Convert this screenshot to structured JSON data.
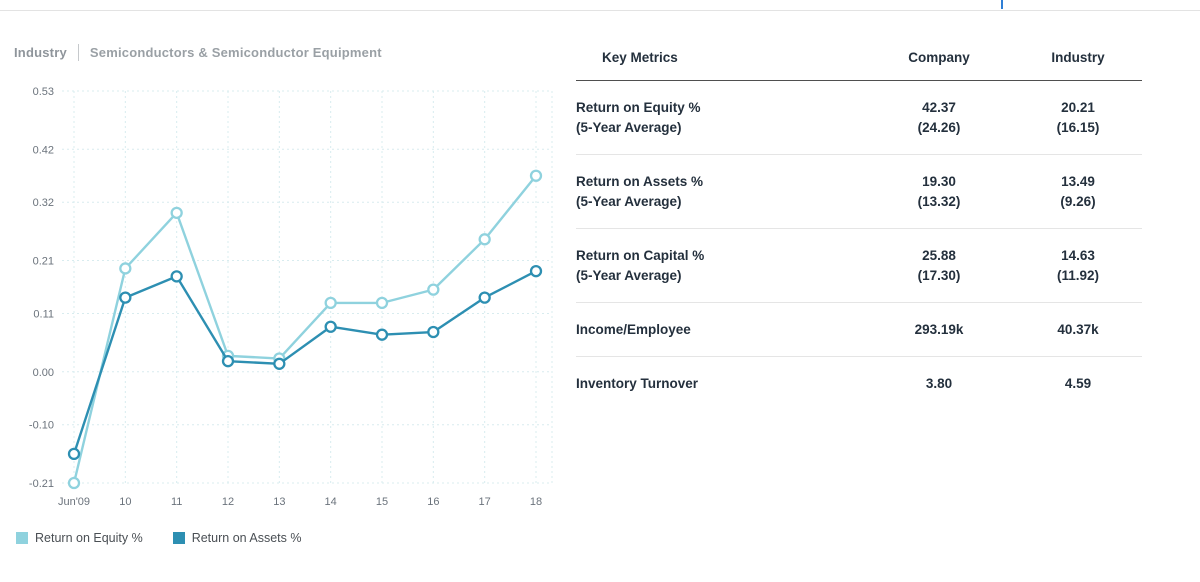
{
  "page": {
    "accent_blue": "#2f7fd6",
    "divider_color": "#e3e3e3"
  },
  "chart": {
    "header": {
      "label": "Industry",
      "value": "Semiconductors & Semiconductor Equipment"
    },
    "legend": [
      {
        "label": "Return on Equity %",
        "color": "#8fd2de"
      },
      {
        "label": "Return on Assets %",
        "color": "#2d8fb2"
      }
    ]
  },
  "chart_data": {
    "type": "line",
    "title": "Industry | Semiconductors & Semiconductor Equipment",
    "x": [
      "Jun'09",
      "10",
      "11",
      "12",
      "13",
      "14",
      "15",
      "16",
      "17",
      "18"
    ],
    "series": [
      {
        "name": "Return on Equity %",
        "color": "#8fd2de",
        "values": [
          -0.21,
          0.195,
          0.3,
          0.03,
          0.025,
          0.13,
          0.13,
          0.155,
          0.25,
          0.37
        ]
      },
      {
        "name": "Return on Assets %",
        "color": "#2d8fb2",
        "values": [
          -0.155,
          0.14,
          0.18,
          0.02,
          0.015,
          0.085,
          0.07,
          0.075,
          0.14,
          0.19
        ]
      }
    ],
    "y_ticks": [
      "0.53",
      "0.42",
      "0.32",
      "0.21",
      "0.11",
      "0.00",
      "-0.10",
      "-0.21"
    ],
    "ylim": [
      -0.21,
      0.53
    ],
    "xlabel": "",
    "ylabel": "",
    "grid": "dashed",
    "grid_color": "#d8ecef",
    "legend_position": "bottom",
    "marker": "open-circle"
  },
  "metrics": {
    "headers": [
      "Key Metrics",
      "Company",
      "Industry"
    ],
    "rows": [
      {
        "label": "Return on Equity %",
        "sublabel": "(5-Year Average)",
        "company": "42.37",
        "company_sub": "(24.26)",
        "industry": "20.21",
        "industry_sub": "(16.15)"
      },
      {
        "label": "Return on Assets %",
        "sublabel": "(5-Year Average)",
        "company": "19.30",
        "company_sub": "(13.32)",
        "industry": "13.49",
        "industry_sub": "(9.26)"
      },
      {
        "label": "Return on Capital %",
        "sublabel": "(5-Year Average)",
        "company": "25.88",
        "company_sub": "(17.30)",
        "industry": "14.63",
        "industry_sub": "(11.92)"
      },
      {
        "label": "Income/Employee",
        "sublabel": "",
        "company": "293.19k",
        "company_sub": "",
        "industry": "40.37k",
        "industry_sub": ""
      },
      {
        "label": "Inventory Turnover",
        "sublabel": "",
        "company": "3.80",
        "company_sub": "",
        "industry": "4.59",
        "industry_sub": ""
      }
    ]
  }
}
